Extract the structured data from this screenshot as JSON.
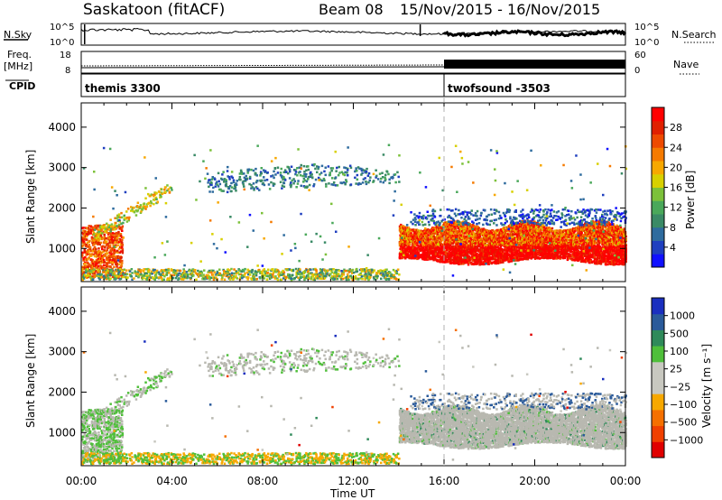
{
  "header": {
    "station": "Saskatoon (fitACF)",
    "beam": "Beam 08",
    "dates": "15/Nov/2015 - 16/Nov/2015"
  },
  "strip_labels": {
    "nsky": "N.Sky",
    "nsearch": "N.Search",
    "freq": "Freq.",
    "freq_unit": "[MHz]",
    "nave": "Nave",
    "cpid": "CPID",
    "nsky_ticks": [
      "10^5",
      "10^0"
    ],
    "nsearch_ticks": [
      "10^5",
      "10^0"
    ],
    "freq_ticks": [
      "18",
      "8"
    ],
    "nave_ticks": [
      "60",
      "0"
    ]
  },
  "cpid_entries": [
    {
      "label": "themis 3300",
      "start_hour": 0
    },
    {
      "label": "twofsound -3503",
      "start_hour": 16
    }
  ],
  "chart_data": [
    {
      "type": "heatmap",
      "name": "power",
      "ylabel": "Slant Range [km]",
      "xlabel": "Time UT",
      "x_ticks": [
        "00:00",
        "04:00",
        "08:00",
        "12:00",
        "16:00",
        "20:00",
        "00:00"
      ],
      "y_ticks": [
        "1000",
        "2000",
        "3000",
        "4000"
      ],
      "xlim_hours": [
        0,
        24
      ],
      "ylim_km": [
        180,
        4600
      ],
      "colorbar_label": "Power [dB]",
      "colorbar_ticks": [
        "4",
        "8",
        "12",
        "16",
        "20",
        "24",
        "28"
      ],
      "colorbar_range": [
        0,
        30
      ]
    },
    {
      "type": "heatmap",
      "name": "velocity",
      "ylabel": "Slant Range [km]",
      "xlabel": "Time UT",
      "x_ticks": [
        "00:00",
        "04:00",
        "08:00",
        "12:00",
        "16:00",
        "20:00",
        "00:00"
      ],
      "y_ticks": [
        "1000",
        "2000",
        "3000",
        "4000"
      ],
      "xlim_hours": [
        0,
        24
      ],
      "ylim_km": [
        180,
        4600
      ],
      "colorbar_label": "Velocity [m s⁻¹]",
      "colorbar_ticks": [
        "1000",
        "500",
        "100",
        "25",
        "−25",
        "−100",
        "−500",
        "−1000"
      ]
    }
  ],
  "colors": {
    "power_scale": [
      "#1010ff",
      "#1f3fbf",
      "#2e6b9e",
      "#3a8a66",
      "#4aa85a",
      "#7cc13a",
      "#d8d000",
      "#f7a800",
      "#f57a00",
      "#ee4a00",
      "#e02000",
      "#ff0000"
    ],
    "velocity_scale": [
      "#1a2fbf",
      "#2a5a9a",
      "#2f8a5a",
      "#4fbf3a",
      "#c8c8c0",
      "#c8c8c0",
      "#f7a800",
      "#f57000",
      "#f04000",
      "#e00000"
    ],
    "ground_scatter": "#b8b8b0",
    "dashed_line": "#b0b0b0"
  }
}
